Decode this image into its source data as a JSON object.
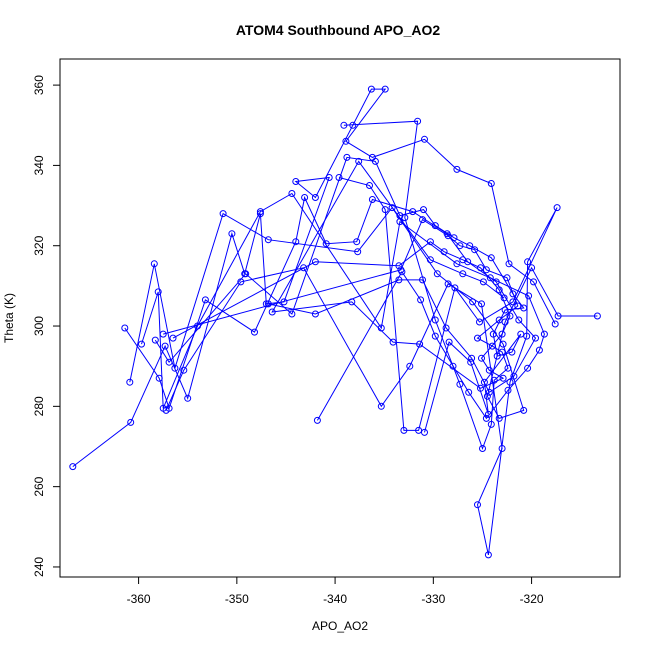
{
  "chart_data": {
    "type": "line",
    "title": "ATOM4 Southbound APO_AO2",
    "xlabel": "APO_AO2",
    "ylabel": "Theta (K)",
    "xlim": [
      -368,
      -311
    ],
    "ylim": [
      237.5,
      366.5
    ],
    "xticks": [
      -360,
      -350,
      -340,
      -330,
      -320
    ],
    "yticks": [
      240,
      260,
      280,
      300,
      320,
      340,
      360
    ],
    "grid": false,
    "legend": "none",
    "series": [
      {
        "color": "#0000ff",
        "marker": "open-circle",
        "points": [
          [
            -366.7,
            265.0
          ],
          [
            -360.8,
            276.0
          ],
          [
            -357.3,
            295.0
          ],
          [
            -355.0,
            282.0
          ],
          [
            -350.5,
            323.0
          ],
          [
            -349.2,
            313.0
          ],
          [
            -347.6,
            328.0
          ],
          [
            -347.0,
            305.5
          ],
          [
            -345.2,
            306.0
          ],
          [
            -340.6,
            337.0
          ],
          [
            -344.0,
            336.0
          ],
          [
            -342.0,
            332.0
          ],
          [
            -338.2,
            350.0
          ],
          [
            -336.3,
            359.0
          ],
          [
            -334.9,
            359.0
          ],
          [
            -338.9,
            346.0
          ],
          [
            -336.2,
            342.0
          ],
          [
            -330.9,
            346.5
          ],
          [
            -327.6,
            339.0
          ],
          [
            -324.1,
            335.5
          ],
          [
            -322.3,
            315.5
          ],
          [
            -319.8,
            311.0
          ],
          [
            -317.6,
            300.5
          ]
        ]
      },
      {
        "color": "#0000ff",
        "marker": "open-circle",
        "points": [
          [
            -361.4,
            299.5
          ],
          [
            -357.9,
            287.0
          ],
          [
            -356.9,
            279.5
          ],
          [
            -353.2,
            306.5
          ],
          [
            -348.2,
            298.5
          ],
          [
            -344.0,
            321.0
          ],
          [
            -343.1,
            332.0
          ],
          [
            -340.9,
            320.5
          ],
          [
            -337.8,
            321.0
          ],
          [
            -336.2,
            331.5
          ],
          [
            -332.1,
            328.5
          ],
          [
            -328.6,
            323.0
          ],
          [
            -326.5,
            316.0
          ],
          [
            -323.6,
            311.0
          ],
          [
            -321.3,
            301.5
          ],
          [
            -319.6,
            297.0
          ],
          [
            -321.8,
            287.5
          ],
          [
            -324.3,
            283.5
          ],
          [
            -326.1,
            292.0
          ],
          [
            -328.7,
            299.5
          ],
          [
            -331.1,
            311.5
          ],
          [
            -333.5,
            311.5
          ],
          [
            -342.0,
            303.0
          ],
          [
            -346.8,
            305.5
          ]
        ]
      },
      {
        "color": "#0000ff",
        "marker": "open-circle",
        "points": [
          [
            -360.9,
            286.0
          ],
          [
            -358.4,
            315.5
          ],
          [
            -356.3,
            289.5
          ],
          [
            -351.4,
            328.0
          ],
          [
            -346.8,
            321.5
          ],
          [
            -337.7,
            318.5
          ],
          [
            -334.2,
            329.5
          ],
          [
            -329.6,
            313.0
          ],
          [
            -326.0,
            306.0
          ],
          [
            -322.9,
            295.5
          ],
          [
            -320.8,
            279.0
          ],
          [
            -323.3,
            277.0
          ],
          [
            -324.5,
            282.5
          ],
          [
            -322.7,
            301.0
          ],
          [
            -320.0,
            314.5
          ],
          [
            -317.3,
            302.5
          ],
          [
            -313.3,
            302.5
          ]
        ]
      },
      {
        "color": "#0000ff",
        "marker": "open-circle",
        "points": [
          [
            -359.7,
            295.5
          ],
          [
            -358.0,
            308.5
          ],
          [
            -357.5,
            279.5
          ],
          [
            -354.0,
            300.0
          ],
          [
            -347.6,
            328.5
          ],
          [
            -344.4,
            333.0
          ],
          [
            -335.3,
            299.5
          ],
          [
            -333.4,
            326.0
          ],
          [
            -327.6,
            315.5
          ],
          [
            -324.2,
            312.0
          ],
          [
            -320.3,
            307.5
          ],
          [
            -318.7,
            298.0
          ],
          [
            -319.2,
            294.0
          ],
          [
            -320.4,
            289.5
          ],
          [
            -322.4,
            284.0
          ],
          [
            -324.6,
            277.0
          ],
          [
            -326.4,
            283.5
          ],
          [
            -329.8,
            297.5
          ],
          [
            -331.3,
            306.5
          ],
          [
            -333.2,
            313.5
          ],
          [
            -341.8,
            276.5
          ]
        ]
      },
      {
        "color": "#0000ff",
        "marker": "open-circle",
        "points": [
          [
            -357.2,
            279.0
          ],
          [
            -355.4,
            289.0
          ],
          [
            -349.6,
            311.0
          ],
          [
            -343.2,
            314.5
          ],
          [
            -335.3,
            280.0
          ],
          [
            -332.4,
            290.0
          ],
          [
            -328.5,
            310.5
          ],
          [
            -325.1,
            305.5
          ],
          [
            -323.0,
            269.5
          ],
          [
            -325.5,
            255.5
          ],
          [
            -324.4,
            243.0
          ],
          [
            -322.2,
            286.0
          ],
          [
            -320.5,
            297.5
          ],
          [
            -320.4,
            316.0
          ],
          [
            -317.4,
            329.5
          ],
          [
            -321.9,
            306.0
          ],
          [
            -325.3,
            301.0
          ],
          [
            -327.8,
            309.5
          ],
          [
            -331.5,
            274.0
          ],
          [
            -333.0,
            274.0
          ],
          [
            -334.9,
            329.0
          ],
          [
            -336.5,
            335.0
          ],
          [
            -339.6,
            337.0
          ]
        ]
      },
      {
        "color": "#0000ff",
        "marker": "open-circle",
        "points": [
          [
            -358.3,
            296.5
          ],
          [
            -356.9,
            291.0
          ],
          [
            -349.1,
            313.0
          ],
          [
            -344.4,
            303.0
          ],
          [
            -338.8,
            342.0
          ],
          [
            -335.9,
            341.0
          ],
          [
            -333.4,
            327.5
          ],
          [
            -331.0,
            329.0
          ],
          [
            -329.8,
            325.0
          ],
          [
            -327.9,
            322.0
          ],
          [
            -326.3,
            320.0
          ],
          [
            -324.1,
            317.0
          ],
          [
            -321.9,
            308.0
          ],
          [
            -320.8,
            304.5
          ],
          [
            -322.7,
            304.0
          ],
          [
            -323.9,
            298.0
          ],
          [
            -323.5,
            292.5
          ],
          [
            -322.0,
            293.5
          ],
          [
            -321.1,
            298.0
          ],
          [
            -324.8,
            286.0
          ],
          [
            -324.4,
            278.0
          ],
          [
            -326.2,
            291.0
          ],
          [
            -328.4,
            296.0
          ],
          [
            -330.9,
            273.5
          ]
        ]
      },
      {
        "color": "#0000ff",
        "marker": "open-circle",
        "points": [
          [
            -357.5,
            298.0
          ],
          [
            -333.3,
            314.0
          ],
          [
            -331.1,
            326.5
          ],
          [
            -328.5,
            322.5
          ],
          [
            -327.3,
            320.0
          ],
          [
            -325.8,
            319.0
          ],
          [
            -324.6,
            314.0
          ],
          [
            -322.5,
            312.0
          ],
          [
            -321.4,
            305.0
          ],
          [
            -323.3,
            301.5
          ],
          [
            -325.5,
            297.0
          ],
          [
            -324.0,
            295.0
          ],
          [
            -323.0,
            293.5
          ],
          [
            -322.4,
            289.5
          ],
          [
            -323.8,
            286.5
          ],
          [
            -324.1,
            275.5
          ],
          [
            -325.0,
            269.5
          ],
          [
            -327.3,
            285.5
          ],
          [
            -328.0,
            290.0
          ],
          [
            -329.8,
            301.5
          ],
          [
            -332.9,
            327.0
          ],
          [
            -331.6,
            351.0
          ],
          [
            -339.1,
            350.0
          ]
        ]
      },
      {
        "color": "#0000ff",
        "marker": "open-circle",
        "points": [
          [
            -356.5,
            297.0
          ],
          [
            -342.0,
            316.0
          ],
          [
            -333.5,
            315.0
          ],
          [
            -330.3,
            321.0
          ],
          [
            -328.9,
            318.5
          ],
          [
            -327.0,
            316.5
          ],
          [
            -325.2,
            314.5
          ],
          [
            -323.3,
            309.0
          ],
          [
            -322.2,
            302.5
          ],
          [
            -323.0,
            298.0
          ],
          [
            -325.1,
            292.0
          ],
          [
            -324.3,
            289.0
          ],
          [
            -322.9,
            287.0
          ],
          [
            -325.2,
            284.5
          ],
          [
            -331.4,
            295.5
          ],
          [
            -334.1,
            296.0
          ],
          [
            -338.3,
            306.0
          ],
          [
            -346.4,
            303.5
          ],
          [
            -337.6,
            341.0
          ],
          [
            -330.3,
            316.5
          ],
          [
            -327.0,
            313.0
          ],
          [
            -324.9,
            311.0
          ],
          [
            -322.8,
            307.0
          ]
        ]
      }
    ]
  }
}
